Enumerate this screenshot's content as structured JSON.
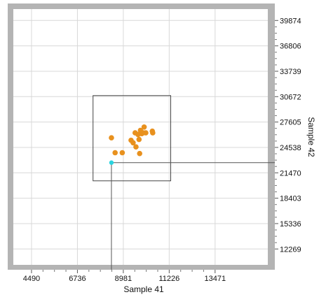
{
  "chart_data": {
    "type": "scatter",
    "xlabel": "Sample 41",
    "ylabel": "Sample 42",
    "xlim": [
      3600,
      16050
    ],
    "ylim": [
      10350,
      41250
    ],
    "x_ticks": [
      "4490",
      "6736",
      "8981",
      "11226",
      "13471"
    ],
    "y_ticks": [
      "39874",
      "36806",
      "33739",
      "30672",
      "27605",
      "24538",
      "21470",
      "18403",
      "15336",
      "12269"
    ],
    "grid": true,
    "series": [
      {
        "color": "#e8911e",
        "points": [
          {
            "x": 8400,
            "y": 25700
          },
          {
            "x": 8580,
            "y": 23900
          },
          {
            "x": 8930,
            "y": 23900
          },
          {
            "x": 9360,
            "y": 25400
          },
          {
            "x": 9460,
            "y": 25100
          },
          {
            "x": 9560,
            "y": 26300
          },
          {
            "x": 9600,
            "y": 24600
          },
          {
            "x": 9700,
            "y": 26100
          },
          {
            "x": 9750,
            "y": 25500
          },
          {
            "x": 9780,
            "y": 23800
          },
          {
            "x": 9820,
            "y": 26600
          },
          {
            "x": 9880,
            "y": 26200
          },
          {
            "x": 9950,
            "y": 26300
          },
          {
            "x": 10000,
            "y": 27000
          },
          {
            "x": 10080,
            "y": 26300
          },
          {
            "x": 10400,
            "y": 26500
          },
          {
            "x": 10420,
            "y": 26300
          }
        ]
      }
    ],
    "highlight_point": {
      "x": 8400,
      "y": 22700,
      "color": "#2ad4e0"
    },
    "selection_box": {
      "x": [
        7500,
        11300
      ],
      "y": [
        20500,
        30800
      ]
    }
  }
}
